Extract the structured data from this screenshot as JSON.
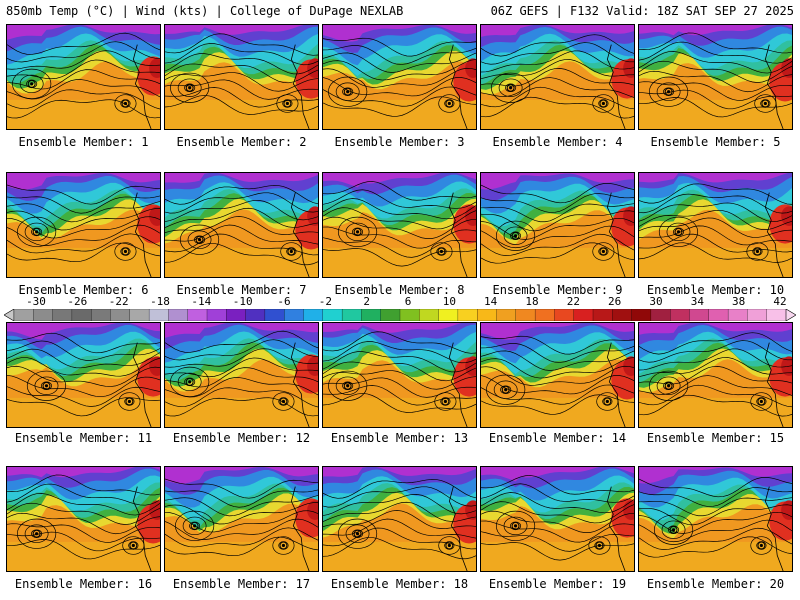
{
  "header": {
    "left": "850mb Temp (°C) | Wind (kts) | College of DuPage NEXLAB",
    "right": "06Z GEFS | F132 Valid: 18Z SAT SEP 27 2025"
  },
  "colorbar": {
    "ticks": [
      "-30",
      "-26",
      "-22",
      "-18",
      "-14",
      "-10",
      "-6",
      "-2",
      "2",
      "6",
      "10",
      "14",
      "18",
      "22",
      "26",
      "30",
      "34",
      "38",
      "42"
    ],
    "colors": [
      "#a0a0a0",
      "#8c8c8c",
      "#787878",
      "#6a6a6a",
      "#7a7a7a",
      "#8e8e8e",
      "#a8a8a8",
      "#c0c0d8",
      "#b090d0",
      "#c060e0",
      "#a040d8",
      "#7a20c0",
      "#5030c0",
      "#3050d0",
      "#3080e0",
      "#20b0e8",
      "#20d0d0",
      "#20c8a0",
      "#20b060",
      "#40a030",
      "#80c020",
      "#c0d820",
      "#f0f020",
      "#f8d020",
      "#f8b818",
      "#f0a020",
      "#f08820",
      "#f07020",
      "#e84820",
      "#d82020",
      "#b81818",
      "#a01010",
      "#900808",
      "#a02040",
      "#c03060",
      "#d04890",
      "#e060b0",
      "#e880c8",
      "#f0a0d8",
      "#f8c0e8"
    ]
  },
  "members": [
    {
      "label": "Ensemble Member: 1"
    },
    {
      "label": "Ensemble Member: 2"
    },
    {
      "label": "Ensemble Member: 3"
    },
    {
      "label": "Ensemble Member: 4"
    },
    {
      "label": "Ensemble Member: 5"
    },
    {
      "label": "Ensemble Member: 6"
    },
    {
      "label": "Ensemble Member: 7"
    },
    {
      "label": "Ensemble Member: 8"
    },
    {
      "label": "Ensemble Member: 9"
    },
    {
      "label": "Ensemble Member: 10"
    },
    {
      "label": "Ensemble Member: 11"
    },
    {
      "label": "Ensemble Member: 12"
    },
    {
      "label": "Ensemble Member: 13"
    },
    {
      "label": "Ensemble Member: 14"
    },
    {
      "label": "Ensemble Member: 15"
    },
    {
      "label": "Ensemble Member: 16"
    },
    {
      "label": "Ensemble Member: 17"
    },
    {
      "label": "Ensemble Member: 18"
    },
    {
      "label": "Ensemble Member: 19"
    },
    {
      "label": "Ensemble Member: 20"
    }
  ],
  "map_colors": {
    "magenta": "#b030d0",
    "purple": "#6040d0",
    "blue": "#3088e0",
    "cyan": "#30c8d8",
    "teal": "#30c0a0",
    "green": "#40b040",
    "yellow": "#e8d830",
    "amber": "#f0b020",
    "orange": "#f09820",
    "red": "#e03020",
    "contour": "#000000"
  }
}
